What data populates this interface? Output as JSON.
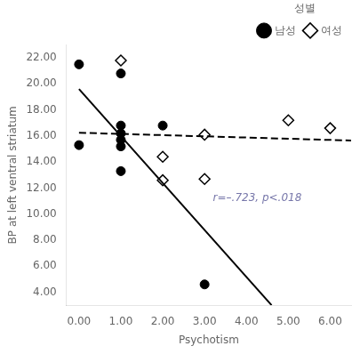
{
  "chart_data": {
    "type": "scatter",
    "x_label": "Psychotism",
    "y_label": "BP at left ventral striatum",
    "legend": "upper right",
    "legend_title": "성별",
    "grid": false,
    "xlim": [
      -0.3,
      6.5
    ],
    "ylim": [
      3.0,
      23.0
    ],
    "xticks": [
      {
        "value": 0.0,
        "label": "0.00"
      },
      {
        "value": 1.0,
        "label": "1.00"
      },
      {
        "value": 2.0,
        "label": "2.00"
      },
      {
        "value": 3.0,
        "label": "3.00"
      },
      {
        "value": 4.0,
        "label": "4.00"
      },
      {
        "value": 5.0,
        "label": "5.00"
      },
      {
        "value": 6.0,
        "label": "6.00"
      }
    ],
    "yticks": [
      {
        "value": 4.0,
        "label": "4.00"
      },
      {
        "value": 6.0,
        "label": "6.00"
      },
      {
        "value": 8.0,
        "label": "8.00"
      },
      {
        "value": 10.0,
        "label": "10.00"
      },
      {
        "value": 12.0,
        "label": "12.00"
      },
      {
        "value": 14.0,
        "label": "14.00"
      },
      {
        "value": 16.0,
        "label": "16.00"
      },
      {
        "value": 18.0,
        "label": "18.00"
      },
      {
        "value": 20.0,
        "label": "20.00"
      },
      {
        "value": 22.0,
        "label": "22.00"
      }
    ],
    "series": [
      {
        "name": "남성",
        "type": "scatter",
        "marker": "circle",
        "color": "#000000",
        "x": [
          0.0,
          0.0,
          1.0,
          1.0,
          1.0,
          1.0,
          1.0,
          1.0,
          2.0,
          3.0
        ],
        "values": [
          21.5,
          15.3,
          20.8,
          16.8,
          16.2,
          15.7,
          15.2,
          13.3,
          16.8,
          4.6
        ]
      },
      {
        "name": "여성",
        "type": "scatter",
        "marker": "diamond",
        "color": "#000000",
        "x": [
          1.0,
          2.0,
          2.0,
          3.0,
          3.0,
          5.0,
          6.0
        ],
        "values": [
          21.8,
          14.4,
          12.6,
          16.1,
          12.7,
          17.2,
          16.6
        ]
      },
      {
        "type": "line",
        "line_style": "solid",
        "color": "#000000",
        "x": [
          0.0,
          4.6
        ],
        "values": [
          19.6,
          3.0
        ]
      },
      {
        "type": "line",
        "line_style": "dashed",
        "color": "#000000",
        "x": [
          0.0,
          6.5
        ],
        "values": [
          16.25,
          15.65
        ]
      }
    ],
    "annotations": [
      {
        "text": "r=–.723, p<.018",
        "x": 3.2,
        "y": 11.0,
        "color": "#7777aa"
      }
    ]
  }
}
